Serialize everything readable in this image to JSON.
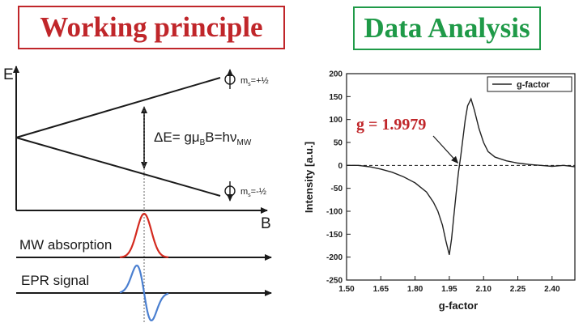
{
  "titles": {
    "left": "Working principle",
    "right": "Data Analysis"
  },
  "diagram": {
    "axis_e": "E",
    "axis_b": "B",
    "ms_upper": "m",
    "ms_upper_sub": "s",
    "ms_upper_val": "=+½",
    "ms_lower": "m",
    "ms_lower_sub": "s",
    "ms_lower_val": "=-½",
    "eq_a": "ΔE= gμ",
    "eq_b_sub": "B",
    "eq_c": "B=hν",
    "eq_d_sub": "MW",
    "mw_label": "MW absorption",
    "epr_label": "EPR signal",
    "colors": {
      "absorption": "#d42a1f",
      "epr": "#4a7fd0"
    }
  },
  "chart_data": {
    "type": "line",
    "xlabel": "g-factor",
    "ylabel": "Intensity [a.u.]",
    "xlim": [
      1.5,
      2.5
    ],
    "ylim": [
      -250,
      200
    ],
    "xticks": [
      "1.50",
      "1.65",
      "1.80",
      "1.95",
      "2.10",
      "2.25",
      "2.40"
    ],
    "yticks": [
      "200",
      "150",
      "100",
      "50",
      "0",
      "-50",
      "-100",
      "-150",
      "-200",
      "-250"
    ],
    "legend": "g-factor",
    "legend_position": "top-right",
    "annotation": "g = 1.9979",
    "annotation_color": "#c0262a",
    "zero_line": "dashed",
    "series": [
      {
        "x": [
          1.5,
          1.55,
          1.6,
          1.65,
          1.7,
          1.75,
          1.8,
          1.85,
          1.88,
          1.9,
          1.92,
          1.935,
          1.95,
          1.96,
          1.97,
          1.98,
          1.99,
          2.0,
          2.01,
          2.02,
          2.03,
          2.045,
          2.06,
          2.08,
          2.1,
          2.12,
          2.15,
          2.2,
          2.25,
          2.3,
          2.35,
          2.4,
          2.45,
          2.5
        ],
        "y": [
          0,
          0,
          -3,
          -8,
          -15,
          -25,
          -38,
          -58,
          -80,
          -100,
          -130,
          -165,
          -195,
          -160,
          -110,
          -60,
          -15,
          20,
          60,
          100,
          130,
          145,
          120,
          80,
          50,
          30,
          18,
          10,
          5,
          2,
          0,
          -2,
          0,
          -3
        ]
      }
    ]
  }
}
